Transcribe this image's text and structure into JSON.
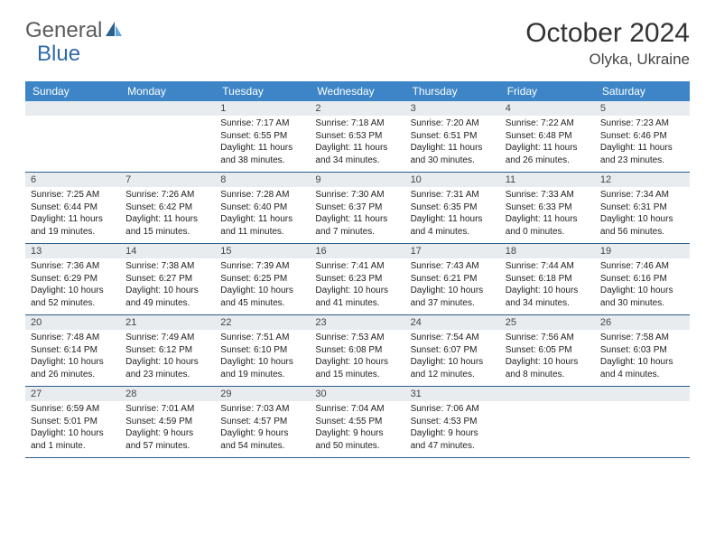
{
  "brand": {
    "general": "General",
    "blue": "Blue"
  },
  "title": "October 2024",
  "location": "Olyka, Ukraine",
  "colors": {
    "header_bg": "#3d85c6",
    "header_text": "#ffffff",
    "daynum_bg": "#e8ecef",
    "border": "#2b5f8c",
    "logo_gray": "#5a5a5a",
    "logo_blue": "#2f6aa8"
  },
  "day_names": [
    "Sunday",
    "Monday",
    "Tuesday",
    "Wednesday",
    "Thursday",
    "Friday",
    "Saturday"
  ],
  "weeks": [
    {
      "days": [
        {
          "n": "",
          "sunrise": "",
          "sunset": "",
          "daylight": ""
        },
        {
          "n": "",
          "sunrise": "",
          "sunset": "",
          "daylight": ""
        },
        {
          "n": "1",
          "sunrise": "Sunrise: 7:17 AM",
          "sunset": "Sunset: 6:55 PM",
          "daylight": "Daylight: 11 hours and 38 minutes."
        },
        {
          "n": "2",
          "sunrise": "Sunrise: 7:18 AM",
          "sunset": "Sunset: 6:53 PM",
          "daylight": "Daylight: 11 hours and 34 minutes."
        },
        {
          "n": "3",
          "sunrise": "Sunrise: 7:20 AM",
          "sunset": "Sunset: 6:51 PM",
          "daylight": "Daylight: 11 hours and 30 minutes."
        },
        {
          "n": "4",
          "sunrise": "Sunrise: 7:22 AM",
          "sunset": "Sunset: 6:48 PM",
          "daylight": "Daylight: 11 hours and 26 minutes."
        },
        {
          "n": "5",
          "sunrise": "Sunrise: 7:23 AM",
          "sunset": "Sunset: 6:46 PM",
          "daylight": "Daylight: 11 hours and 23 minutes."
        }
      ]
    },
    {
      "days": [
        {
          "n": "6",
          "sunrise": "Sunrise: 7:25 AM",
          "sunset": "Sunset: 6:44 PM",
          "daylight": "Daylight: 11 hours and 19 minutes."
        },
        {
          "n": "7",
          "sunrise": "Sunrise: 7:26 AM",
          "sunset": "Sunset: 6:42 PM",
          "daylight": "Daylight: 11 hours and 15 minutes."
        },
        {
          "n": "8",
          "sunrise": "Sunrise: 7:28 AM",
          "sunset": "Sunset: 6:40 PM",
          "daylight": "Daylight: 11 hours and 11 minutes."
        },
        {
          "n": "9",
          "sunrise": "Sunrise: 7:30 AM",
          "sunset": "Sunset: 6:37 PM",
          "daylight": "Daylight: 11 hours and 7 minutes."
        },
        {
          "n": "10",
          "sunrise": "Sunrise: 7:31 AM",
          "sunset": "Sunset: 6:35 PM",
          "daylight": "Daylight: 11 hours and 4 minutes."
        },
        {
          "n": "11",
          "sunrise": "Sunrise: 7:33 AM",
          "sunset": "Sunset: 6:33 PM",
          "daylight": "Daylight: 11 hours and 0 minutes."
        },
        {
          "n": "12",
          "sunrise": "Sunrise: 7:34 AM",
          "sunset": "Sunset: 6:31 PM",
          "daylight": "Daylight: 10 hours and 56 minutes."
        }
      ]
    },
    {
      "days": [
        {
          "n": "13",
          "sunrise": "Sunrise: 7:36 AM",
          "sunset": "Sunset: 6:29 PM",
          "daylight": "Daylight: 10 hours and 52 minutes."
        },
        {
          "n": "14",
          "sunrise": "Sunrise: 7:38 AM",
          "sunset": "Sunset: 6:27 PM",
          "daylight": "Daylight: 10 hours and 49 minutes."
        },
        {
          "n": "15",
          "sunrise": "Sunrise: 7:39 AM",
          "sunset": "Sunset: 6:25 PM",
          "daylight": "Daylight: 10 hours and 45 minutes."
        },
        {
          "n": "16",
          "sunrise": "Sunrise: 7:41 AM",
          "sunset": "Sunset: 6:23 PM",
          "daylight": "Daylight: 10 hours and 41 minutes."
        },
        {
          "n": "17",
          "sunrise": "Sunrise: 7:43 AM",
          "sunset": "Sunset: 6:21 PM",
          "daylight": "Daylight: 10 hours and 37 minutes."
        },
        {
          "n": "18",
          "sunrise": "Sunrise: 7:44 AM",
          "sunset": "Sunset: 6:18 PM",
          "daylight": "Daylight: 10 hours and 34 minutes."
        },
        {
          "n": "19",
          "sunrise": "Sunrise: 7:46 AM",
          "sunset": "Sunset: 6:16 PM",
          "daylight": "Daylight: 10 hours and 30 minutes."
        }
      ]
    },
    {
      "days": [
        {
          "n": "20",
          "sunrise": "Sunrise: 7:48 AM",
          "sunset": "Sunset: 6:14 PM",
          "daylight": "Daylight: 10 hours and 26 minutes."
        },
        {
          "n": "21",
          "sunrise": "Sunrise: 7:49 AM",
          "sunset": "Sunset: 6:12 PM",
          "daylight": "Daylight: 10 hours and 23 minutes."
        },
        {
          "n": "22",
          "sunrise": "Sunrise: 7:51 AM",
          "sunset": "Sunset: 6:10 PM",
          "daylight": "Daylight: 10 hours and 19 minutes."
        },
        {
          "n": "23",
          "sunrise": "Sunrise: 7:53 AM",
          "sunset": "Sunset: 6:08 PM",
          "daylight": "Daylight: 10 hours and 15 minutes."
        },
        {
          "n": "24",
          "sunrise": "Sunrise: 7:54 AM",
          "sunset": "Sunset: 6:07 PM",
          "daylight": "Daylight: 10 hours and 12 minutes."
        },
        {
          "n": "25",
          "sunrise": "Sunrise: 7:56 AM",
          "sunset": "Sunset: 6:05 PM",
          "daylight": "Daylight: 10 hours and 8 minutes."
        },
        {
          "n": "26",
          "sunrise": "Sunrise: 7:58 AM",
          "sunset": "Sunset: 6:03 PM",
          "daylight": "Daylight: 10 hours and 4 minutes."
        }
      ]
    },
    {
      "days": [
        {
          "n": "27",
          "sunrise": "Sunrise: 6:59 AM",
          "sunset": "Sunset: 5:01 PM",
          "daylight": "Daylight: 10 hours and 1 minute."
        },
        {
          "n": "28",
          "sunrise": "Sunrise: 7:01 AM",
          "sunset": "Sunset: 4:59 PM",
          "daylight": "Daylight: 9 hours and 57 minutes."
        },
        {
          "n": "29",
          "sunrise": "Sunrise: 7:03 AM",
          "sunset": "Sunset: 4:57 PM",
          "daylight": "Daylight: 9 hours and 54 minutes."
        },
        {
          "n": "30",
          "sunrise": "Sunrise: 7:04 AM",
          "sunset": "Sunset: 4:55 PM",
          "daylight": "Daylight: 9 hours and 50 minutes."
        },
        {
          "n": "31",
          "sunrise": "Sunrise: 7:06 AM",
          "sunset": "Sunset: 4:53 PM",
          "daylight": "Daylight: 9 hours and 47 minutes."
        },
        {
          "n": "",
          "sunrise": "",
          "sunset": "",
          "daylight": ""
        },
        {
          "n": "",
          "sunrise": "",
          "sunset": "",
          "daylight": ""
        }
      ]
    }
  ]
}
